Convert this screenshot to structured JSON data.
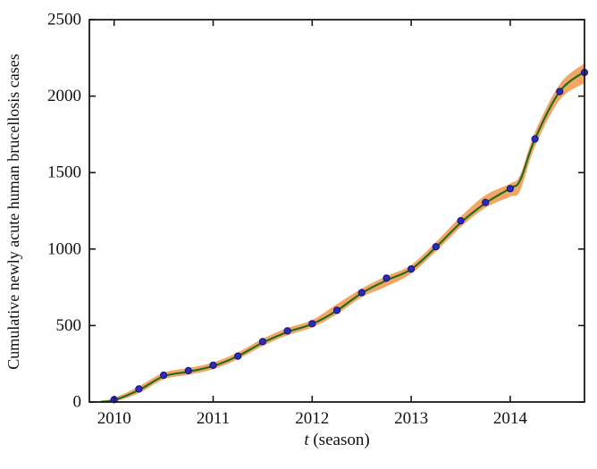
{
  "figure": {
    "ylabel": "Cumulative newly acute human brucellosis cases",
    "xlabel_t": "t",
    "xlabel_rest": " (season)"
  },
  "colors": {
    "background": "#ffffff",
    "axis": "#1a1a1a",
    "band": "#F1A763",
    "fit_line": "#1E6A1E",
    "dot_fill": "#2B2BBE",
    "dot_edge": "#101078",
    "text": "#111111"
  },
  "chart_data": {
    "type": "line",
    "title": "",
    "xlabel": "t (season)",
    "ylabel": "Cumulative newly acute human brucellosis cases",
    "xlim": [
      2009.75,
      2014.75
    ],
    "ylim": [
      0,
      2500
    ],
    "xticks": [
      2010,
      2011,
      2012,
      2013,
      2014
    ],
    "yticks": [
      0,
      500,
      1000,
      1500,
      2000,
      2500
    ],
    "grid": false,
    "legend": "none",
    "series": [
      {
        "name": "confidence-band",
        "kind": "band",
        "color": "#F1A763",
        "x": [
          2009.87,
          2010.0,
          2010.25,
          2010.5,
          2010.75,
          2011.0,
          2011.25,
          2011.5,
          2011.75,
          2012.0,
          2012.25,
          2012.5,
          2012.75,
          2013.0,
          2013.25,
          2013.5,
          2013.75,
          2014.0,
          2014.1,
          2014.25,
          2014.5,
          2014.75
        ],
        "upper": [
          8,
          26,
          102,
          192,
          222,
          259,
          324,
          414,
          484,
          536,
          640,
          742,
          823,
          896,
          1046,
          1212,
          1352,
          1428,
          1485,
          1765,
          2078,
          2215
        ],
        "lower": [
          0,
          2,
          58,
          148,
          178,
          215,
          280,
          366,
          436,
          488,
          574,
          686,
          755,
          840,
          984,
          1144,
          1270,
          1343,
          1382,
          1670,
          1975,
          2085
        ]
      },
      {
        "name": "model-fit",
        "kind": "line",
        "color": "#1E6A1E",
        "x": [
          2009.87,
          2010.0,
          2010.25,
          2010.5,
          2010.75,
          2011.0,
          2011.25,
          2011.5,
          2011.75,
          2012.0,
          2012.25,
          2012.5,
          2012.75,
          2013.0,
          2013.25,
          2013.5,
          2013.75,
          2014.0,
          2014.1,
          2014.25,
          2014.5,
          2014.75
        ],
        "y": [
          2,
          12,
          78,
          168,
          198,
          235,
          300,
          388,
          458,
          510,
          598,
          712,
          795,
          868,
          1012,
          1172,
          1300,
          1398,
          1450,
          1720,
          2030,
          2160
        ]
      },
      {
        "name": "observed-cases",
        "kind": "scatter",
        "color": "#2B2BBE",
        "x": [
          2010.0,
          2010.25,
          2010.5,
          2010.75,
          2011.0,
          2011.25,
          2011.5,
          2011.75,
          2012.0,
          2012.25,
          2012.5,
          2012.75,
          2013.0,
          2013.25,
          2013.5,
          2013.75,
          2014.0,
          2014.25,
          2014.5,
          2014.75
        ],
        "y": [
          15,
          85,
          175,
          205,
          240,
          300,
          395,
          465,
          512,
          600,
          715,
          810,
          870,
          1015,
          1185,
          1305,
          1395,
          1720,
          2030,
          2155
        ]
      }
    ]
  }
}
